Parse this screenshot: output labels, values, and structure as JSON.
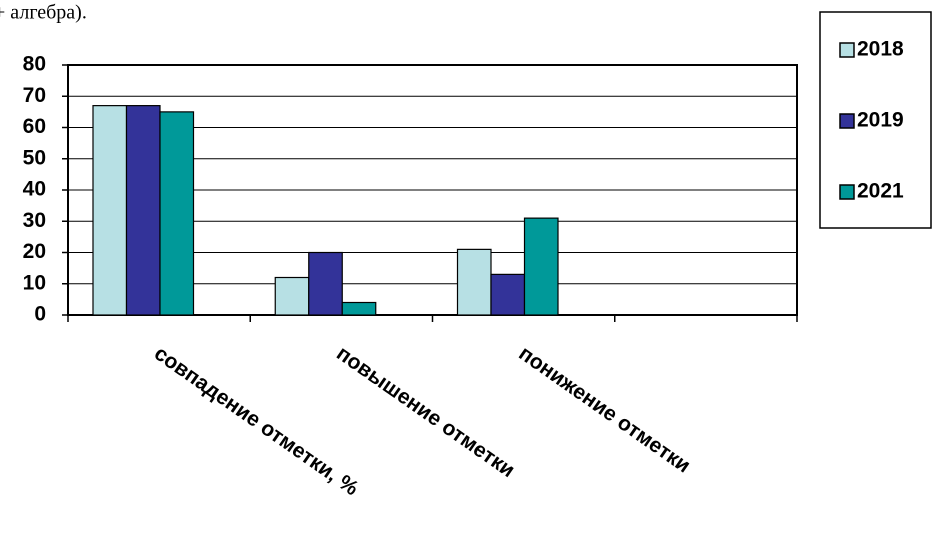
{
  "top_text": "+ алгебра).",
  "chart_data": {
    "type": "bar",
    "categories": [
      "совпадение отметки, %",
      "повышение отметки",
      "понижение отметки",
      null
    ],
    "series": [
      {
        "name": "2018",
        "color": "#b7e0e4",
        "values": [
          67,
          12,
          21,
          null
        ]
      },
      {
        "name": "2019",
        "color": "#333399",
        "values": [
          67,
          20,
          13,
          null
        ]
      },
      {
        "name": "2021",
        "color": "#009999",
        "values": [
          65,
          4,
          31,
          null
        ]
      }
    ],
    "ylim": [
      0,
      80
    ],
    "yticks": [
      0,
      10,
      20,
      30,
      40,
      50,
      60,
      70,
      80
    ],
    "grid": true,
    "legend": "right"
  }
}
